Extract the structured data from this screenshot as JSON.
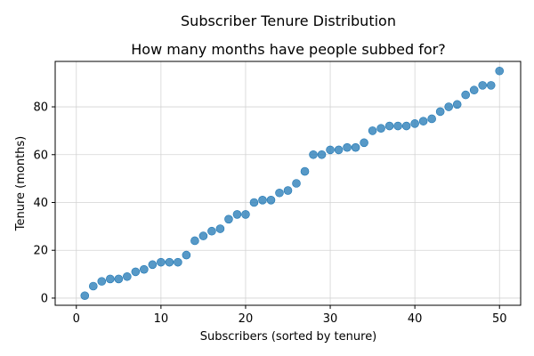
{
  "chart_data": {
    "type": "scatter",
    "title": "Subscriber Tenure Distribution",
    "subtitle": "How many months have people subbed for?",
    "xlabel": "Subscribers (sorted by tenure)",
    "ylabel": "Tenure (months)",
    "xlim": [
      -2.5,
      52.5
    ],
    "ylim": [
      -3,
      99
    ],
    "xticks": [
      0,
      10,
      20,
      30,
      40,
      50
    ],
    "yticks": [
      0,
      20,
      40,
      60,
      80
    ],
    "grid": true,
    "point_color": "#1f77b4",
    "x": [
      1,
      2,
      3,
      4,
      5,
      6,
      7,
      8,
      9,
      10,
      11,
      12,
      13,
      14,
      15,
      16,
      17,
      18,
      19,
      20,
      21,
      22,
      23,
      24,
      25,
      26,
      27,
      28,
      29,
      30,
      31,
      32,
      33,
      34,
      35,
      36,
      37,
      38,
      39,
      40,
      41,
      42,
      43,
      44,
      45,
      46,
      47,
      48,
      49,
      50
    ],
    "y": [
      1,
      5,
      7,
      8,
      8,
      9,
      11,
      12,
      14,
      15,
      15,
      15,
      18,
      24,
      26,
      28,
      29,
      33,
      35,
      35,
      40,
      41,
      41,
      44,
      45,
      48,
      53,
      60,
      60,
      62,
      62,
      63,
      63,
      65,
      70,
      71,
      72,
      72,
      72,
      73,
      74,
      75,
      78,
      80,
      81,
      85,
      87,
      89,
      89,
      95
    ]
  }
}
